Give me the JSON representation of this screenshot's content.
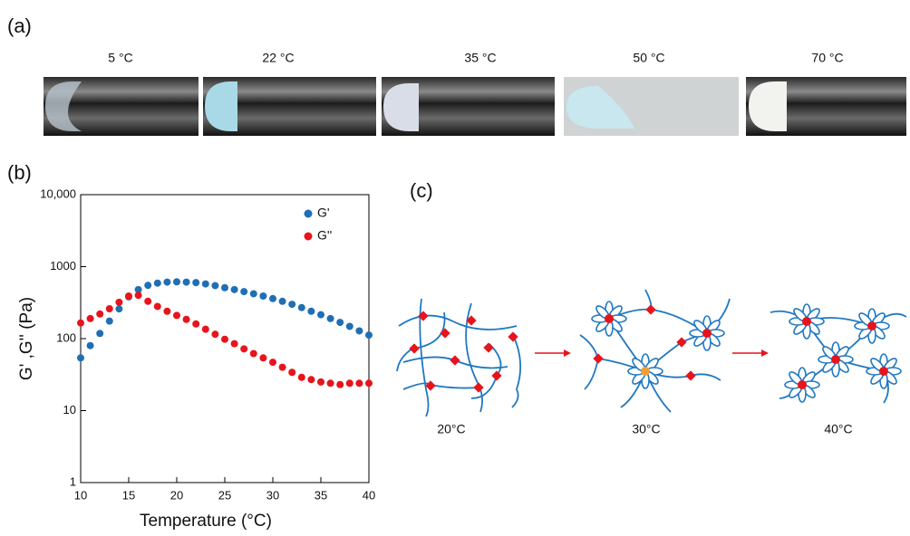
{
  "panel_a": {
    "label": "(a)",
    "photos": [
      {
        "label": "5 °C"
      },
      {
        "label": "22 °C"
      },
      {
        "label": "35 °C"
      },
      {
        "label": "50 °C"
      },
      {
        "label": "70 °C"
      }
    ]
  },
  "chart_data": {
    "type": "scatter",
    "panel_label": "(b)",
    "x_label": "Temperature (°C)",
    "y_label": "G' ,G'' (Pa)",
    "x": [
      10,
      11,
      12,
      13,
      14,
      15,
      16,
      17,
      18,
      19,
      20,
      21,
      22,
      23,
      24,
      25,
      26,
      27,
      28,
      29,
      30,
      31,
      32,
      33,
      34,
      35,
      36,
      37,
      38,
      39,
      40
    ],
    "series": [
      {
        "name": "G'",
        "color": "#1f6fb5",
        "values": [
          54,
          80,
          118,
          175,
          259,
          380,
          480,
          550,
          590,
          610,
          615,
          610,
          600,
          575,
          545,
          510,
          480,
          450,
          420,
          390,
          360,
          330,
          300,
          270,
          240,
          215,
          190,
          168,
          148,
          128,
          112
        ]
      },
      {
        "name": "G''",
        "color": "#e8141c",
        "values": [
          165,
          190,
          220,
          260,
          320,
          390,
          400,
          330,
          280,
          240,
          210,
          185,
          160,
          135,
          115,
          98,
          85,
          72,
          62,
          54,
          47,
          40,
          34,
          29,
          27,
          25,
          24,
          23,
          24,
          24,
          24
        ]
      }
    ],
    "xlim": [
      10,
      40
    ],
    "xticks": [
      10,
      15,
      20,
      25,
      30,
      35,
      40
    ],
    "ylim": [
      1,
      10000
    ],
    "yticks": [
      1,
      10,
      100,
      1000,
      {
        "value": 10000,
        "label": "10,000"
      }
    ],
    "log_y": true,
    "grid": false,
    "legend": "upper right"
  },
  "panel_c": {
    "label": "(c)",
    "states": [
      {
        "label": "20°C"
      },
      {
        "label": "30°C"
      },
      {
        "label": "40°C"
      }
    ]
  }
}
